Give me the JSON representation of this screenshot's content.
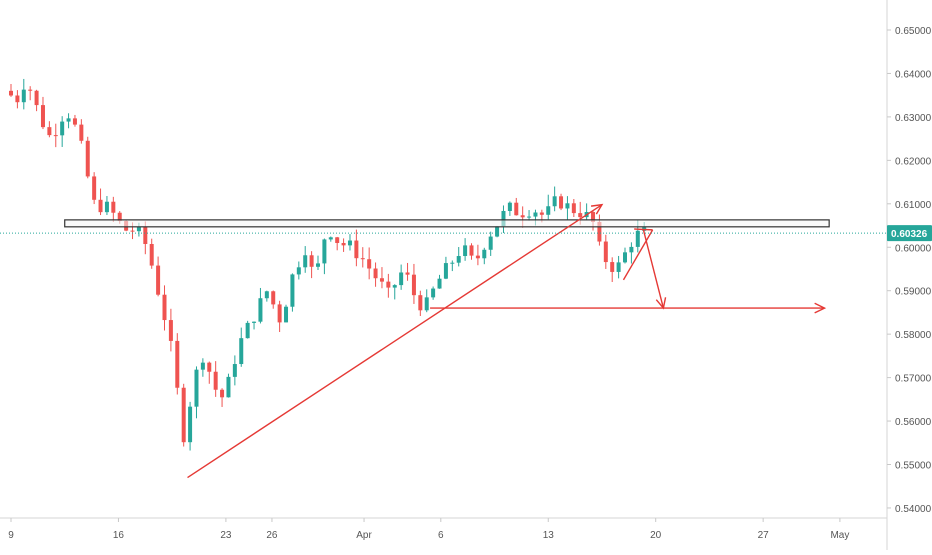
{
  "chart_data": {
    "type": "candlestick",
    "title": "",
    "xlabel": "",
    "ylabel": "",
    "ylim": [
      0.535,
      0.657
    ],
    "grid": false,
    "y_ticks": [
      "0.65000",
      "0.64000",
      "0.63000",
      "0.62000",
      "0.61000",
      "0.60000",
      "0.59000",
      "0.58000",
      "0.57000",
      "0.56000",
      "0.55000",
      "0.54000"
    ],
    "y_tick_values": [
      0.65,
      0.64,
      0.63,
      0.62,
      0.61,
      0.6,
      0.59,
      0.58,
      0.57,
      0.56,
      0.55,
      0.54
    ],
    "x_ticks": [
      {
        "label": "9",
        "day": 0
      },
      {
        "label": "16",
        "day": 7
      },
      {
        "label": "23",
        "day": 14
      },
      {
        "label": "26",
        "day": 17
      },
      {
        "label": "Apr",
        "day": 23
      },
      {
        "label": "6",
        "day": 28
      },
      {
        "label": "13",
        "day": 35
      },
      {
        "label": "20",
        "day": 42
      },
      {
        "label": "27",
        "day": 49
      },
      {
        "label": "May",
        "day": 54
      }
    ],
    "current_price": {
      "label": "0.60326",
      "value": 0.60326
    },
    "colors": {
      "up": "#26a69a",
      "down": "#ef5350",
      "annotation": "#e53935",
      "price_line": "#26a69a",
      "price_badge": "#26a69a",
      "zone_border": "#333333",
      "axis_text": "#555555"
    },
    "resistance_zone": {
      "low": 0.6047,
      "high": 0.6063,
      "day_start": 3.5,
      "day_end": 53.3
    },
    "trendlines": [
      {
        "from": {
          "day": 11.5,
          "price": 0.547
        },
        "to": {
          "day": 38.5,
          "price": 0.6098
        },
        "arrow": true
      },
      {
        "from": {
          "day": 27.3,
          "price": 0.586
        },
        "to": {
          "day": 53,
          "price": 0.586
        },
        "arrow": true
      },
      {
        "from": {
          "day": 41.2,
          "price": 0.604
        },
        "to": {
          "day": 42.5,
          "price": 0.586
        },
        "arrow": true
      },
      {
        "from": {
          "day": 39.9,
          "price": 0.5925
        },
        "to": {
          "day": 41.8,
          "price": 0.604
        },
        "arrow": false
      },
      {
        "from": {
          "day": 40.6,
          "price": 0.6042
        },
        "to": {
          "day": 41.8,
          "price": 0.604
        },
        "arrow": false
      }
    ],
    "path_knots": [
      {
        "day": 0,
        "price": 0.636
      },
      {
        "day": 0.8,
        "price": 0.634
      },
      {
        "day": 1.4,
        "price": 0.639
      },
      {
        "day": 2.3,
        "price": 0.63
      },
      {
        "day": 3,
        "price": 0.625
      },
      {
        "day": 4,
        "price": 0.632
      },
      {
        "day": 4.8,
        "price": 0.626
      },
      {
        "day": 5.8,
        "price": 0.61
      },
      {
        "day": 6.8,
        "price": 0.609
      },
      {
        "day": 7.8,
        "price": 0.604
      },
      {
        "day": 8.6,
        "price": 0.604
      },
      {
        "day": 9.3,
        "price": 0.6
      },
      {
        "day": 10,
        "price": 0.59
      },
      {
        "day": 10.7,
        "price": 0.58
      },
      {
        "day": 11.2,
        "price": 0.568
      },
      {
        "day": 11.7,
        "price": 0.556
      },
      {
        "day": 12.3,
        "price": 0.569
      },
      {
        "day": 13,
        "price": 0.576
      },
      {
        "day": 13.6,
        "price": 0.568
      },
      {
        "day": 14.3,
        "price": 0.565
      },
      {
        "day": 15.2,
        "price": 0.577
      },
      {
        "day": 16.2,
        "price": 0.584
      },
      {
        "day": 17.1,
        "price": 0.59
      },
      {
        "day": 18,
        "price": 0.583
      },
      {
        "day": 18.8,
        "price": 0.594
      },
      {
        "day": 19.6,
        "price": 0.6
      },
      {
        "day": 20.2,
        "price": 0.592
      },
      {
        "day": 21,
        "price": 0.605
      },
      {
        "day": 21.8,
        "price": 0.601
      },
      {
        "day": 22.6,
        "price": 0.6
      },
      {
        "day": 23.4,
        "price": 0.597
      },
      {
        "day": 24.2,
        "price": 0.593
      },
      {
        "day": 25,
        "price": 0.589
      },
      {
        "day": 26,
        "price": 0.595
      },
      {
        "day": 26.8,
        "price": 0.588
      },
      {
        "day": 27.4,
        "price": 0.586
      },
      {
        "day": 28.2,
        "price": 0.592
      },
      {
        "day": 29,
        "price": 0.596
      },
      {
        "day": 29.8,
        "price": 0.6
      },
      {
        "day": 30.6,
        "price": 0.596
      },
      {
        "day": 31.4,
        "price": 0.602
      },
      {
        "day": 32.2,
        "price": 0.606
      },
      {
        "day": 32.8,
        "price": 0.609
      },
      {
        "day": 33.6,
        "price": 0.608
      },
      {
        "day": 34.4,
        "price": 0.609
      },
      {
        "day": 35.2,
        "price": 0.607
      },
      {
        "day": 36,
        "price": 0.611
      },
      {
        "day": 36.8,
        "price": 0.609
      },
      {
        "day": 37.6,
        "price": 0.608
      },
      {
        "day": 38.3,
        "price": 0.606
      },
      {
        "day": 38.8,
        "price": 0.599
      },
      {
        "day": 39.4,
        "price": 0.596
      },
      {
        "day": 39.9,
        "price": 0.595
      },
      {
        "day": 40.5,
        "price": 0.599
      },
      {
        "day": 41.0,
        "price": 0.6025
      },
      {
        "day": 41.5,
        "price": 0.6033
      }
    ],
    "candles_per_day": 2.4,
    "seed": 7
  }
}
